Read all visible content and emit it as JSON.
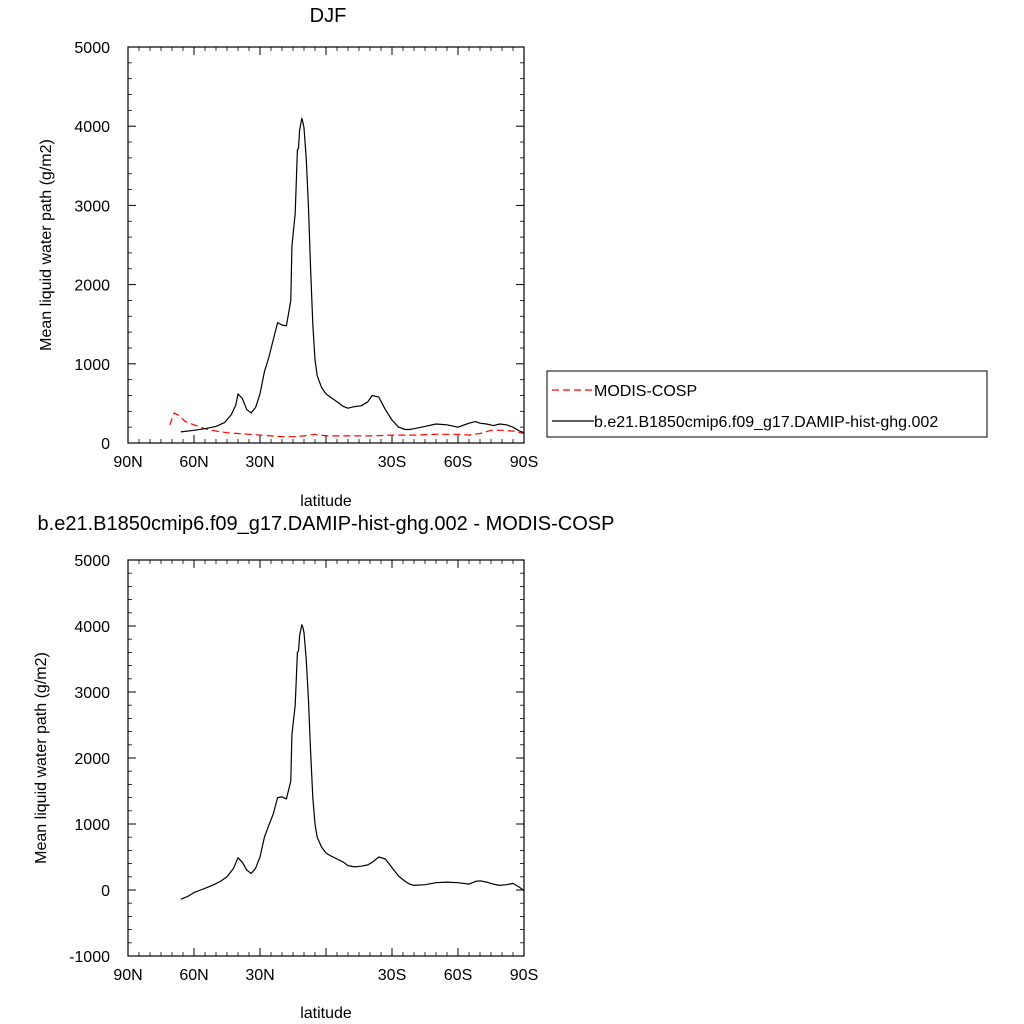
{
  "chart_data": [
    {
      "type": "line",
      "title": "DJF",
      "xlabel": "latitude",
      "ylabel": "Mean liquid water path (g/m2)",
      "xlim": [
        90,
        -90
      ],
      "ylim": [
        0,
        5000
      ],
      "xticks": [
        90,
        60,
        30,
        0,
        -30,
        -60,
        -90
      ],
      "xtick_labels": [
        "90N",
        "60N",
        "30N",
        "",
        "30S",
        "60S",
        "90S"
      ],
      "yticks": [
        0,
        1000,
        2000,
        3000,
        4000,
        5000
      ],
      "ytick_labels": [
        "0",
        "1000",
        "2000",
        "3000",
        "4000",
        "5000"
      ],
      "legend_position": "right",
      "series": [
        {
          "name": "MODIS-COSP",
          "color": "#ff0000",
          "dash": "dashed",
          "x": [
            71,
            69,
            67,
            64,
            60,
            55,
            50,
            45,
            40,
            35,
            30,
            25,
            20,
            15,
            10,
            5,
            0,
            -5,
            -10,
            -20,
            -30,
            -40,
            -50,
            -60,
            -65,
            -70,
            -75,
            -80,
            -85,
            -90
          ],
          "y": [
            230,
            380,
            350,
            270,
            230,
            180,
            150,
            130,
            120,
            110,
            100,
            90,
            80,
            80,
            90,
            110,
            90,
            90,
            90,
            90,
            100,
            100,
            110,
            110,
            100,
            120,
            160,
            160,
            150,
            120
          ]
        },
        {
          "name": "b.e21.B1850cmip6.f09_g17.DAMIP-hist-ghg.002",
          "color": "#000000",
          "dash": "solid",
          "x": [
            66,
            60,
            55,
            50,
            46,
            43,
            41,
            40,
            38,
            36,
            34,
            32,
            30,
            28,
            26,
            24,
            22,
            20,
            18,
            16,
            15.5,
            14,
            13,
            12.5,
            12,
            11,
            10.5,
            10,
            9,
            8,
            7,
            6,
            5,
            4,
            2,
            0,
            -2,
            -5,
            -8,
            -10,
            -13,
            -16,
            -19,
            -21,
            -24,
            -27,
            -30,
            -33,
            -36,
            -38,
            -40,
            -45,
            -50,
            -55,
            -60,
            -65,
            -68,
            -70,
            -73,
            -76,
            -79,
            -82,
            -85,
            -88,
            -90
          ],
          "y": [
            140,
            160,
            180,
            210,
            260,
            360,
            480,
            620,
            560,
            420,
            380,
            450,
            620,
            900,
            1080,
            1300,
            1520,
            1490,
            1480,
            1800,
            2480,
            2900,
            3700,
            3720,
            3950,
            4100,
            4050,
            3980,
            3600,
            3000,
            2200,
            1500,
            1050,
            850,
            700,
            620,
            580,
            520,
            460,
            440,
            460,
            470,
            520,
            600,
            580,
            420,
            290,
            200,
            170,
            170,
            180,
            210,
            240,
            230,
            200,
            250,
            270,
            250,
            240,
            220,
            240,
            230,
            200,
            150,
            130
          ]
        }
      ]
    },
    {
      "type": "line",
      "title": "b.e21.B1850cmip6.f09_g17.DAMIP-hist-ghg.002 - MODIS-COSP",
      "xlabel": "latitude",
      "ylabel": "Mean liquid water path (g/m2)",
      "xlim": [
        90,
        -90
      ],
      "ylim": [
        -1000,
        5000
      ],
      "xticks": [
        90,
        60,
        30,
        0,
        -30,
        -60,
        -90
      ],
      "xtick_labels": [
        "90N",
        "60N",
        "30N",
        "",
        "30S",
        "60S",
        "90S"
      ],
      "yticks": [
        -1000,
        0,
        1000,
        2000,
        3000,
        4000,
        5000
      ],
      "ytick_labels": [
        "-1000",
        "0",
        "1000",
        "2000",
        "3000",
        "4000",
        "5000"
      ],
      "series": [
        {
          "color": "#000000",
          "dash": "solid",
          "x": [
            66,
            63,
            60,
            57,
            54,
            51,
            48,
            45,
            42,
            40,
            38,
            36,
            34,
            32,
            30,
            28,
            26,
            24,
            22,
            20,
            18,
            16,
            15.5,
            14,
            13,
            12.5,
            12,
            11,
            10.5,
            10,
            9,
            8,
            7,
            6,
            5,
            4,
            2,
            0,
            -2,
            -5,
            -8,
            -10,
            -13,
            -16,
            -19,
            -21,
            -24,
            -27,
            -30,
            -33,
            -36,
            -38,
            -40,
            -45,
            -50,
            -55,
            -60,
            -65,
            -68,
            -70,
            -73,
            -76,
            -79,
            -82,
            -85,
            -88,
            -90
          ],
          "y": [
            -140,
            -100,
            -40,
            0,
            40,
            80,
            130,
            200,
            330,
            490,
            420,
            300,
            250,
            330,
            500,
            800,
            980,
            1150,
            1400,
            1410,
            1380,
            1650,
            2350,
            2800,
            3600,
            3620,
            3850,
            4020,
            3980,
            3900,
            3500,
            2900,
            2100,
            1400,
            1000,
            800,
            650,
            560,
            520,
            470,
            420,
            370,
            350,
            360,
            380,
            420,
            500,
            470,
            340,
            210,
            130,
            90,
            70,
            80,
            110,
            120,
            110,
            90,
            130,
            140,
            120,
            90,
            70,
            80,
            100,
            40,
            -10
          ]
        }
      ]
    }
  ]
}
